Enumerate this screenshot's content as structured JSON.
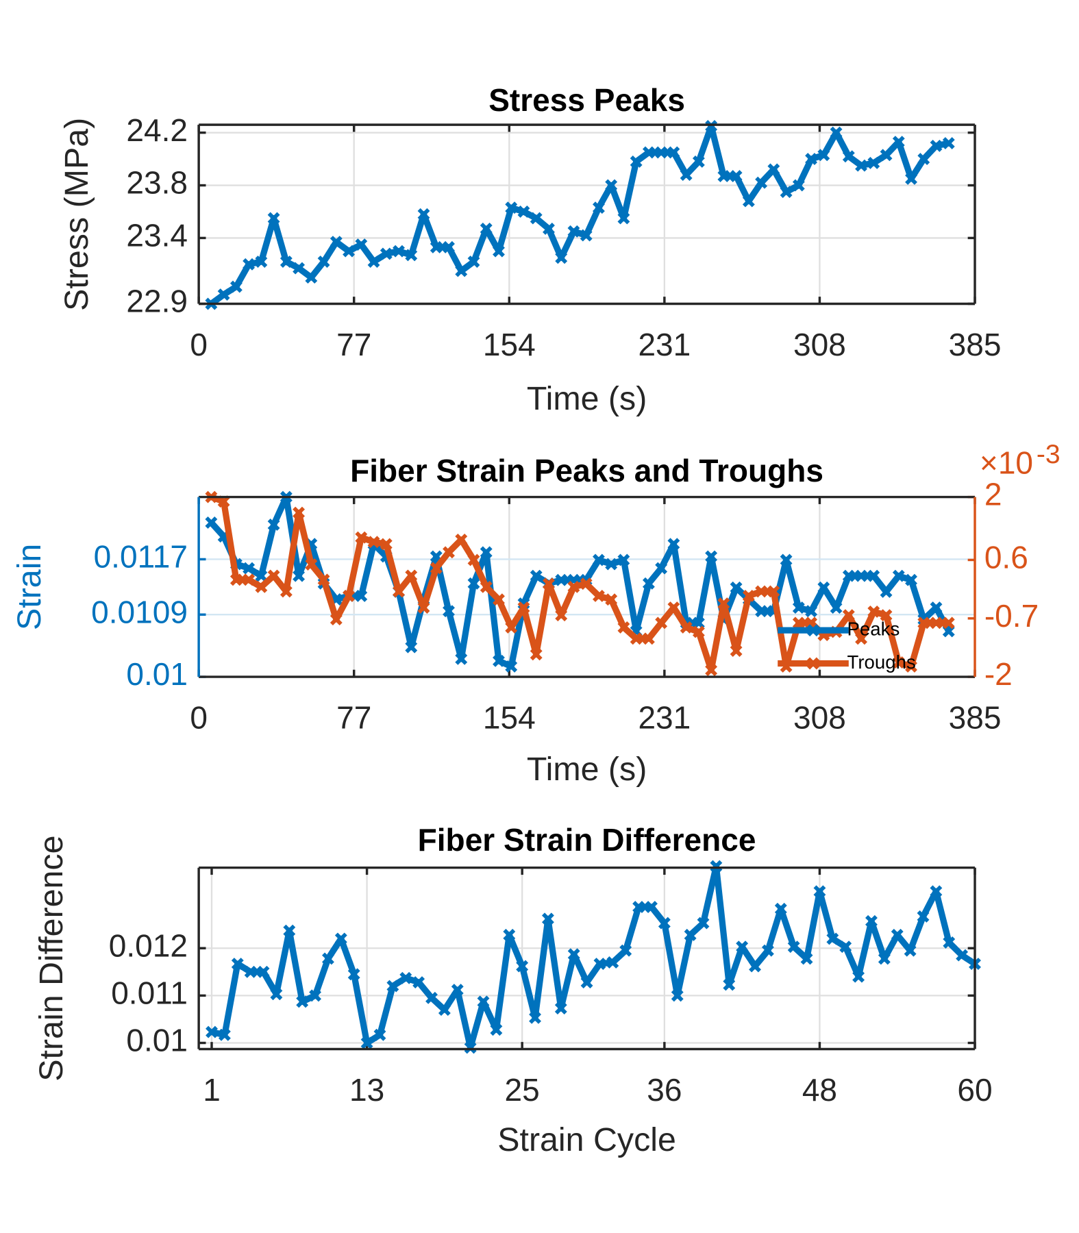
{
  "chart_data": [
    {
      "type": "line",
      "title": "Stress Peaks",
      "xlabel": "Time (s)",
      "ylabel": "Stress (MPa)",
      "xlim": [
        0,
        385
      ],
      "xticks": [
        0,
        77,
        154,
        231,
        308,
        385
      ],
      "ylim": [
        22.9,
        24.26
      ],
      "yticks": [
        22.9,
        23.4,
        23.8,
        24.2
      ],
      "grid": true,
      "x": [
        6.2,
        12.4,
        18.6,
        24.8,
        31,
        37.2,
        43.4,
        49.6,
        55.8,
        62,
        68.2,
        74.4,
        80.6,
        86.8,
        93,
        99.2,
        105.4,
        111.6,
        117.8,
        124,
        130.2,
        136.4,
        142.6,
        148.8,
        155,
        161.2,
        167.4,
        173.6,
        179.8,
        186,
        192.2,
        198.4,
        204.6,
        210.8,
        217,
        223.2,
        229.4,
        235.6,
        241.8,
        248,
        254.2,
        260.4,
        266.6,
        272.8,
        279,
        285.2,
        291.4,
        297.6,
        303.8,
        310,
        316.2,
        322.4,
        328.6,
        334.8,
        341,
        347.2,
        353.4,
        359.6,
        365.8,
        372
      ],
      "series": [
        {
          "color": "#0072bd",
          "values": [
            22.9,
            22.97,
            23.03,
            23.2,
            23.22,
            23.55,
            23.22,
            23.17,
            23.1,
            23.22,
            23.37,
            23.3,
            23.35,
            23.22,
            23.28,
            23.3,
            23.27,
            23.58,
            23.33,
            23.33,
            23.15,
            23.22,
            23.47,
            23.3,
            23.63,
            23.6,
            23.55,
            23.47,
            23.25,
            23.45,
            23.42,
            23.63,
            23.8,
            23.55,
            23.98,
            24.05,
            24.05,
            24.05,
            23.88,
            23.98,
            24.25,
            23.87,
            23.87,
            23.68,
            23.82,
            23.92,
            23.75,
            23.8,
            24.0,
            24.03,
            24.2,
            24.02,
            23.95,
            23.97,
            24.03,
            24.13,
            23.85,
            24.0,
            24.1,
            24.12
          ]
        }
      ]
    },
    {
      "type": "line",
      "title": "Fiber Strain Peaks and Troughs",
      "xlabel": "Time (s)",
      "ylabel": "Strain",
      "xlim": [
        0,
        385
      ],
      "xticks": [
        0,
        77,
        154,
        231,
        308,
        385
      ],
      "ylim": [
        0.01,
        0.0126
      ],
      "yticks": [
        0.01,
        0.0109,
        0.0117
      ],
      "y_color": "#0072bd",
      "y2lim": [
        -2,
        2
      ],
      "y2ticks": [
        -2,
        -0.7,
        0.6,
        2
      ],
      "y2_color": "#d95319",
      "y2_exponent": {
        "base": "×10",
        "power": "-3"
      },
      "grid": true,
      "legend": "east",
      "x": [
        6.2,
        12.4,
        18.6,
        24.8,
        31,
        37.2,
        43.4,
        49.6,
        55.8,
        62,
        68.2,
        74.4,
        80.6,
        86.8,
        93,
        99.2,
        105.4,
        111.6,
        117.8,
        124,
        130.2,
        136.4,
        142.6,
        148.8,
        155,
        161.2,
        167.4,
        173.6,
        179.8,
        186,
        192.2,
        198.4,
        204.6,
        210.8,
        217,
        223.2,
        229.4,
        235.6,
        241.8,
        248,
        254.2,
        260.4,
        266.6,
        272.8,
        279,
        285.2,
        291.4,
        297.6,
        303.8,
        310,
        316.2,
        322.4,
        328.6,
        334.8,
        341,
        347.2,
        353.4,
        359.6,
        365.8,
        372
      ],
      "series": [
        {
          "name": "Peaks",
          "color": "#0072bd",
          "values": [
            0.01223,
            0.01203,
            0.01163,
            0.01157,
            0.01146,
            0.0122,
            0.0126,
            0.01146,
            0.01192,
            0.01135,
            0.01112,
            0.01117,
            0.01117,
            0.01192,
            0.01174,
            0.01123,
            0.01043,
            0.01112,
            0.01174,
            0.01095,
            0.01026,
            0.01135,
            0.0118,
            0.01023,
            0.01015,
            0.01106,
            0.01146,
            0.01135,
            0.0114,
            0.0114,
            0.0114,
            0.01169,
            0.01163,
            0.01169,
            0.01066,
            0.01135,
            0.01157,
            0.01192,
            0.01078,
            0.01078,
            0.01174,
            0.01083,
            0.01129,
            0.01112,
            0.01095,
            0.01095,
            0.01169,
            0.011,
            0.01095,
            0.01129,
            0.011,
            0.01146,
            0.01146,
            0.01146,
            0.01123,
            0.01146,
            0.0114,
            0.01083,
            0.011,
            0.01066
          ]
        },
        {
          "name": "Troughs",
          "color": "#d95319",
          "axis": "y2",
          "values": [
            2,
            1.9,
            0.16,
            0.16,
            0,
            0.25,
            -0.1,
            1.65,
            0.5,
            0.16,
            -0.72,
            -0.2,
            1.1,
            1.0,
            0.95,
            -0.1,
            0.25,
            -0.46,
            0.42,
            0.77,
            1.05,
            0.6,
            0,
            -0.28,
            -0.9,
            -0.46,
            -1.5,
            0.07,
            -0.63,
            0,
            0.07,
            -0.2,
            -0.28,
            -0.9,
            -1.15,
            -1.15,
            -0.8,
            -0.46,
            -0.9,
            -1.0,
            -1.85,
            -0.37,
            -1.42,
            -0.2,
            -0.1,
            -0.1,
            -1.77,
            -0.8,
            -0.8,
            -1.07,
            -1.0,
            -0.63,
            -1.15,
            -0.55,
            -0.63,
            -1.68,
            -1.77,
            -0.8,
            -0.8,
            -0.8
          ]
        }
      ]
    },
    {
      "type": "line",
      "title": "Fiber Strain Difference",
      "xlabel": "Strain Cycle",
      "ylabel": "Strain Difference",
      "xlim": [
        0,
        60
      ],
      "xticks": [
        1,
        13,
        25,
        36,
        48,
        60
      ],
      "ylim": [
        0.00987,
        0.0137
      ],
      "yticks": [
        0.01,
        0.011,
        0.012
      ],
      "grid": true,
      "x": [
        1,
        2,
        3,
        4,
        5,
        6,
        7,
        8,
        9,
        10,
        11,
        12,
        13,
        14,
        15,
        16,
        17,
        18,
        19,
        20,
        21,
        22,
        23,
        24,
        25,
        26,
        27,
        28,
        29,
        30,
        31,
        32,
        33,
        34,
        35,
        36,
        37,
        38,
        39,
        40,
        41,
        42,
        43,
        44,
        45,
        46,
        47,
        48,
        49,
        50,
        51,
        52,
        53,
        54,
        55,
        56,
        57,
        58,
        59,
        60
      ],
      "series": [
        {
          "color": "#0072bd",
          "values": [
            0.01023,
            0.01017,
            0.01167,
            0.0115,
            0.0115,
            0.01103,
            0.01237,
            0.01087,
            0.011,
            0.01178,
            0.0122,
            0.01145,
            0.01,
            0.01017,
            0.0112,
            0.01137,
            0.01128,
            0.01095,
            0.0107,
            0.01112,
            0.0099,
            0.01087,
            0.01028,
            0.01228,
            0.01162,
            0.01053,
            0.01262,
            0.01073,
            0.01187,
            0.01128,
            0.01167,
            0.0117,
            0.01195,
            0.01287,
            0.01287,
            0.01253,
            0.011,
            0.01228,
            0.01253,
            0.01373,
            0.01123,
            0.01203,
            0.01162,
            0.01195,
            0.01283,
            0.01203,
            0.01178,
            0.0132,
            0.0122,
            0.01203,
            0.0114,
            0.01257,
            0.01178,
            0.01228,
            0.01195,
            0.01267,
            0.0132,
            0.01212,
            0.01185,
            0.01167
          ]
        }
      ]
    }
  ]
}
